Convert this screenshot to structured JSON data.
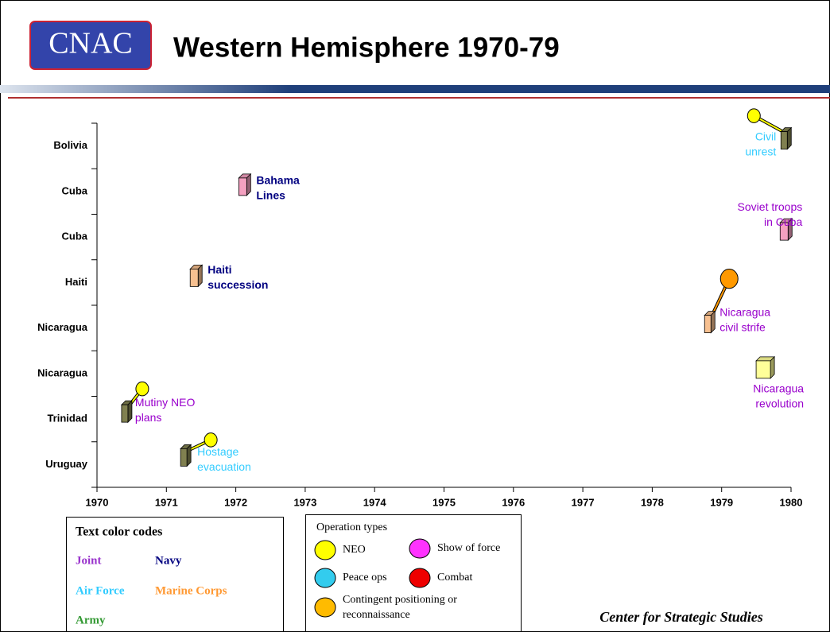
{
  "header": {
    "logo": "CNAC",
    "title": "Western Hemisphere 1970-79"
  },
  "chart_data": {
    "type": "timeline",
    "categories": [
      "Bolivia",
      "Cuba",
      "Cuba",
      "Haiti",
      "Nicaragua",
      "Nicaragua",
      "Trinidad",
      "Uruguay"
    ],
    "xlim": [
      1970,
      1980
    ],
    "xticks": [
      1970,
      1971,
      1972,
      1973,
      1974,
      1975,
      1976,
      1977,
      1978,
      1979,
      1980
    ],
    "events": [
      {
        "label": [
          "Bahama",
          "Lines"
        ],
        "row": 1,
        "x": 1972.1,
        "color": "#000080",
        "box": "#f4a0c0",
        "bold": true
      },
      {
        "label": [
          "Haiti",
          "succession"
        ],
        "row": 3,
        "x": 1971.4,
        "color": "#000080",
        "box": "#f7c090",
        "bold": true
      },
      {
        "label": [
          "Mutiny NEO",
          "plans"
        ],
        "row": 6,
        "x": 1970.4,
        "color": "#9900cc",
        "box": "#808050",
        "balloon": "#ffff00"
      },
      {
        "label": [
          "Hostage",
          "evacuation"
        ],
        "row": 7,
        "x": 1971.25,
        "color": "#33ccff",
        "box": "#808050",
        "balloon": "#ffff00"
      },
      {
        "label": [
          "Civil",
          "unrest"
        ],
        "row": 0,
        "x": 1979.9,
        "color": "#33ccff",
        "box": "#808050",
        "balloon": "#ffff00"
      },
      {
        "label": [
          "Soviet troops",
          "in Cuba"
        ],
        "row": 2,
        "x": 1979.9,
        "color": "#9900cc",
        "box": "#f4a0c0"
      },
      {
        "label": [
          "Nicaragua",
          "civil strife"
        ],
        "row": 4,
        "x": 1978.8,
        "color": "#9900cc",
        "box": "#f7c090",
        "balloon": "#ff9900"
      },
      {
        "label": [
          "Nicaragua",
          "revolution"
        ],
        "row": 5,
        "x": 1979.6,
        "color": "#9900cc",
        "box": "#ffff99"
      }
    ]
  },
  "legends": {
    "text_colors": {
      "title": "Text color codes",
      "items": [
        {
          "label": "Joint",
          "color": "#9933cc"
        },
        {
          "label": "Navy",
          "color": "#000080"
        },
        {
          "label": "Air Force",
          "color": "#33ccff"
        },
        {
          "label": "Marine Corps",
          "color": "#ff9933"
        },
        {
          "label": "Army",
          "color": "#339933"
        }
      ]
    },
    "operation_types": {
      "title": "Operation types",
      "items": [
        {
          "label": [
            "NEO"
          ],
          "color": "#ffff00"
        },
        {
          "label": [
            "Show of force"
          ],
          "color": "#ff33ff"
        },
        {
          "label": [
            "Peace ops"
          ],
          "color": "#33ccee"
        },
        {
          "label": [
            "Combat"
          ],
          "color": "#ee0000"
        },
        {
          "label": [
            "Contingent  positioning or",
            "reconnaissance"
          ],
          "color": "#ffbb00"
        }
      ]
    }
  },
  "footer": "Center for Strategic Studies"
}
